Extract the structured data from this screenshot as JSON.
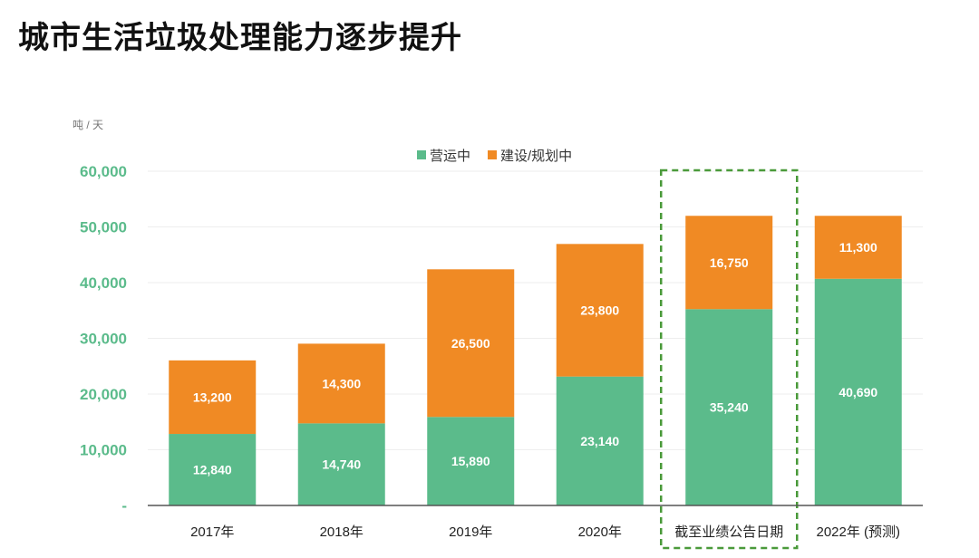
{
  "title": "城市生活垃圾处理能力逐步提升",
  "chart_data": {
    "type": "bar",
    "stacked": true,
    "unit_label": "吨 / 天",
    "categories": [
      "2017年",
      "2018年",
      "2019年",
      "2020年",
      "截至业绩公告日期",
      "2022年 (预测)"
    ],
    "series": [
      {
        "name": "营运中",
        "color": "#5bbb8b",
        "values": [
          12840,
          14740,
          15890,
          23140,
          35240,
          40690
        ],
        "labels": [
          "12,840",
          "14,740",
          "15,890",
          "23,140",
          "35,240",
          "40,690"
        ]
      },
      {
        "name": "建设/规划中",
        "color": "#f08a24",
        "values": [
          13200,
          14300,
          26500,
          23800,
          16750,
          11300
        ],
        "labels": [
          "13,200",
          "14,300",
          "26,500",
          "23,800",
          "16,750",
          "11,300"
        ]
      }
    ],
    "yticks": [
      0,
      10000,
      20000,
      30000,
      40000,
      50000,
      60000
    ],
    "ytick_labels": [
      "-",
      "10,000",
      "20,000",
      "30,000",
      "40,000",
      "50,000",
      "60,000"
    ],
    "ylim": [
      0,
      60000
    ],
    "grid": true,
    "legend": "top-center",
    "highlight_category": "截至业绩公告日期",
    "highlight_color": "#4a9a3a",
    "axis_label_color": "#5bbb8b"
  }
}
